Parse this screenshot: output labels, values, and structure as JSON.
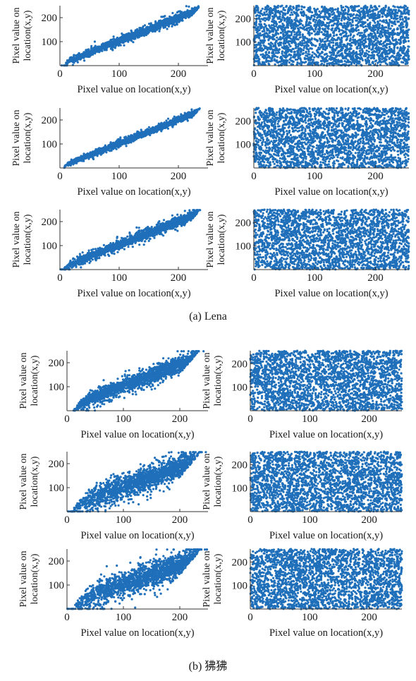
{
  "figure": {
    "groups": [
      {
        "caption": "(a) Lena"
      },
      {
        "caption": "(b) 狒狒"
      }
    ]
  },
  "style": {
    "point_color": "#1f6fba",
    "axis_color": "#333333",
    "text_color": "#1a1a1a"
  },
  "chart_data": [
    {
      "type": "scatter",
      "group": "(a) Lena",
      "direction": "horizontal",
      "kind": "correlated",
      "xlabel": "Pixel value on location(x,y)",
      "ylabel": "Pixel value on location(x,y)",
      "xlim": [
        0,
        250
      ],
      "ylim": [
        0,
        250
      ],
      "xticks": [
        0,
        100,
        200
      ],
      "yticks": [
        100,
        200
      ],
      "trend": {
        "x": [
          10,
          230
        ],
        "y": [
          15,
          230
        ]
      },
      "spread": 12
    },
    {
      "type": "scatter",
      "group": "(a) Lena",
      "direction": "horizontal",
      "kind": "uniform",
      "xlabel": "Pixel value on location(x,y)",
      "ylabel": "Pixel value on location(x,y)",
      "xlim": [
        0,
        255
      ],
      "ylim": [
        0,
        255
      ],
      "xticks": [
        0,
        100,
        200
      ],
      "yticks": [
        100,
        200
      ],
      "range": [
        0,
        255
      ]
    },
    {
      "type": "scatter",
      "group": "(a) Lena",
      "direction": "vertical",
      "kind": "correlated",
      "xlabel": "Pixel value on location(x,y)",
      "ylabel": "Pixel value on location(x,y)",
      "xlim": [
        0,
        250
      ],
      "ylim": [
        0,
        250
      ],
      "xticks": [
        0,
        100,
        200
      ],
      "yticks": [
        100,
        200
      ],
      "trend": {
        "x": [
          10,
          230
        ],
        "y": [
          15,
          230
        ]
      },
      "spread": 9
    },
    {
      "type": "scatter",
      "group": "(a) Lena",
      "direction": "vertical",
      "kind": "uniform",
      "xlabel": "Pixel value on location(x,y)",
      "ylabel": "Pixel value on location(x,y)",
      "xlim": [
        0,
        255
      ],
      "ylim": [
        0,
        255
      ],
      "xticks": [
        0,
        100,
        200
      ],
      "yticks": [
        100,
        200
      ],
      "range": [
        0,
        255
      ]
    },
    {
      "type": "scatter",
      "group": "(a) Lena",
      "direction": "diagonal",
      "kind": "correlated",
      "xlabel": "Pixel value on location(x,y)",
      "ylabel": "Pixel value on location(x,y)",
      "xlim": [
        0,
        250
      ],
      "ylim": [
        0,
        250
      ],
      "xticks": [
        0,
        100,
        200
      ],
      "yticks": [
        100,
        200
      ],
      "trend": {
        "x": [
          10,
          230
        ],
        "y": [
          15,
          230
        ]
      },
      "spread": 15
    },
    {
      "type": "scatter",
      "group": "(a) Lena",
      "direction": "diagonal",
      "kind": "uniform",
      "xlabel": "Pixel value on location(x,y)",
      "ylabel": "Pixel value on location(x,y)",
      "xlim": [
        0,
        255
      ],
      "ylim": [
        0,
        255
      ],
      "xticks": [
        0,
        100,
        200
      ],
      "yticks": [
        100,
        200
      ],
      "range": [
        0,
        255
      ]
    },
    {
      "type": "scatter",
      "group": "(b) 狒狒",
      "direction": "horizontal",
      "kind": "correlated",
      "xlabel": "Pixel value on location(x,y)",
      "ylabel": "Pixel value on location(x,y)",
      "xlim": [
        0,
        250
      ],
      "ylim": [
        0,
        250
      ],
      "xticks": [
        0,
        100,
        200
      ],
      "yticks": [
        100,
        200
      ],
      "trend": {
        "x": [
          20,
          220
        ],
        "y": [
          30,
          210
        ]
      },
      "spread": 25
    },
    {
      "type": "scatter",
      "group": "(b) 狒狒",
      "direction": "horizontal",
      "kind": "uniform",
      "xlabel": "Pixel value on location(x,y)",
      "ylabel": "Pixel value on location(x,y)",
      "xlim": [
        0,
        255
      ],
      "ylim": [
        0,
        255
      ],
      "xticks": [
        0,
        100,
        200
      ],
      "yticks": [
        100,
        200
      ],
      "range": [
        0,
        255
      ]
    },
    {
      "type": "scatter",
      "group": "(b) 狒狒",
      "direction": "vertical",
      "kind": "correlated",
      "xlabel": "Pixel value on location(x,y)",
      "ylabel": "Pixel value on location(x,y)",
      "xlim": [
        0,
        250
      ],
      "ylim": [
        0,
        250
      ],
      "xticks": [
        0,
        100,
        200
      ],
      "yticks": [
        100,
        200
      ],
      "trend": {
        "x": [
          20,
          220
        ],
        "y": [
          40,
          200
        ]
      },
      "spread": 35
    },
    {
      "type": "scatter",
      "group": "(b) 狒狒",
      "direction": "vertical",
      "kind": "uniform",
      "xlabel": "Pixel value on location(x,y)",
      "ylabel": "Pixel value on location(x,y)",
      "xlim": [
        0,
        255
      ],
      "ylim": [
        0,
        255
      ],
      "xticks": [
        0,
        100,
        200
      ],
      "yticks": [
        100,
        200
      ],
      "range": [
        0,
        255
      ]
    },
    {
      "type": "scatter",
      "group": "(b) 狒狒",
      "direction": "diagonal",
      "kind": "correlated",
      "xlabel": "Pixel value on location(x,y)",
      "ylabel": "Pixel value on location(x,y)",
      "xlim": [
        0,
        250
      ],
      "ylim": [
        0,
        250
      ],
      "xticks": [
        0,
        100,
        200
      ],
      "yticks": [
        100,
        200
      ],
      "trend": {
        "x": [
          20,
          220
        ],
        "y": [
          40,
          200
        ]
      },
      "spread": 38
    },
    {
      "type": "scatter",
      "group": "(b) 狒狒",
      "direction": "diagonal",
      "kind": "uniform",
      "xlabel": "Pixel value on location(x,y)",
      "ylabel": "Pixel value on location(x,y)",
      "xlim": [
        0,
        255
      ],
      "ylim": [
        0,
        255
      ],
      "xticks": [
        0,
        100,
        200
      ],
      "yticks": [
        100,
        200
      ],
      "range": [
        0,
        255
      ]
    }
  ]
}
